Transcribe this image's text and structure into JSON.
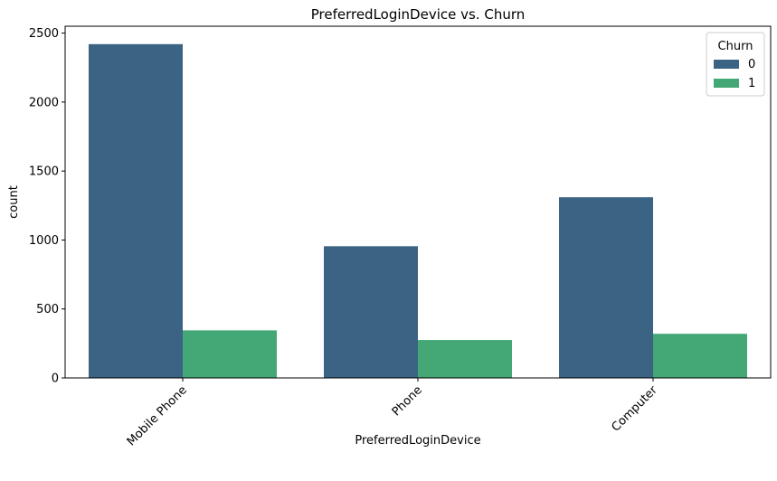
{
  "chart_data": {
    "type": "bar",
    "title": "PreferredLoginDevice vs. Churn",
    "xlabel": "PreferredLoginDevice",
    "ylabel": "count",
    "categories": [
      "Mobile Phone",
      "Phone",
      "Computer"
    ],
    "series": [
      {
        "name": "0",
        "values": [
          2420,
          955,
          1310
        ],
        "color": "#3b6484"
      },
      {
        "name": "1",
        "values": [
          345,
          275,
          320
        ],
        "color": "#44a876"
      }
    ],
    "ylim": [
      0,
      2550
    ],
    "yticks": [
      0,
      500,
      1000,
      1500,
      2000,
      2500
    ],
    "ytick_labels": [
      "0",
      "500",
      "1000",
      "1500",
      "2000",
      "2500"
    ],
    "xtick_rotation": 45,
    "grid": false,
    "legend": {
      "title": "Churn",
      "placement": "top-right"
    }
  }
}
